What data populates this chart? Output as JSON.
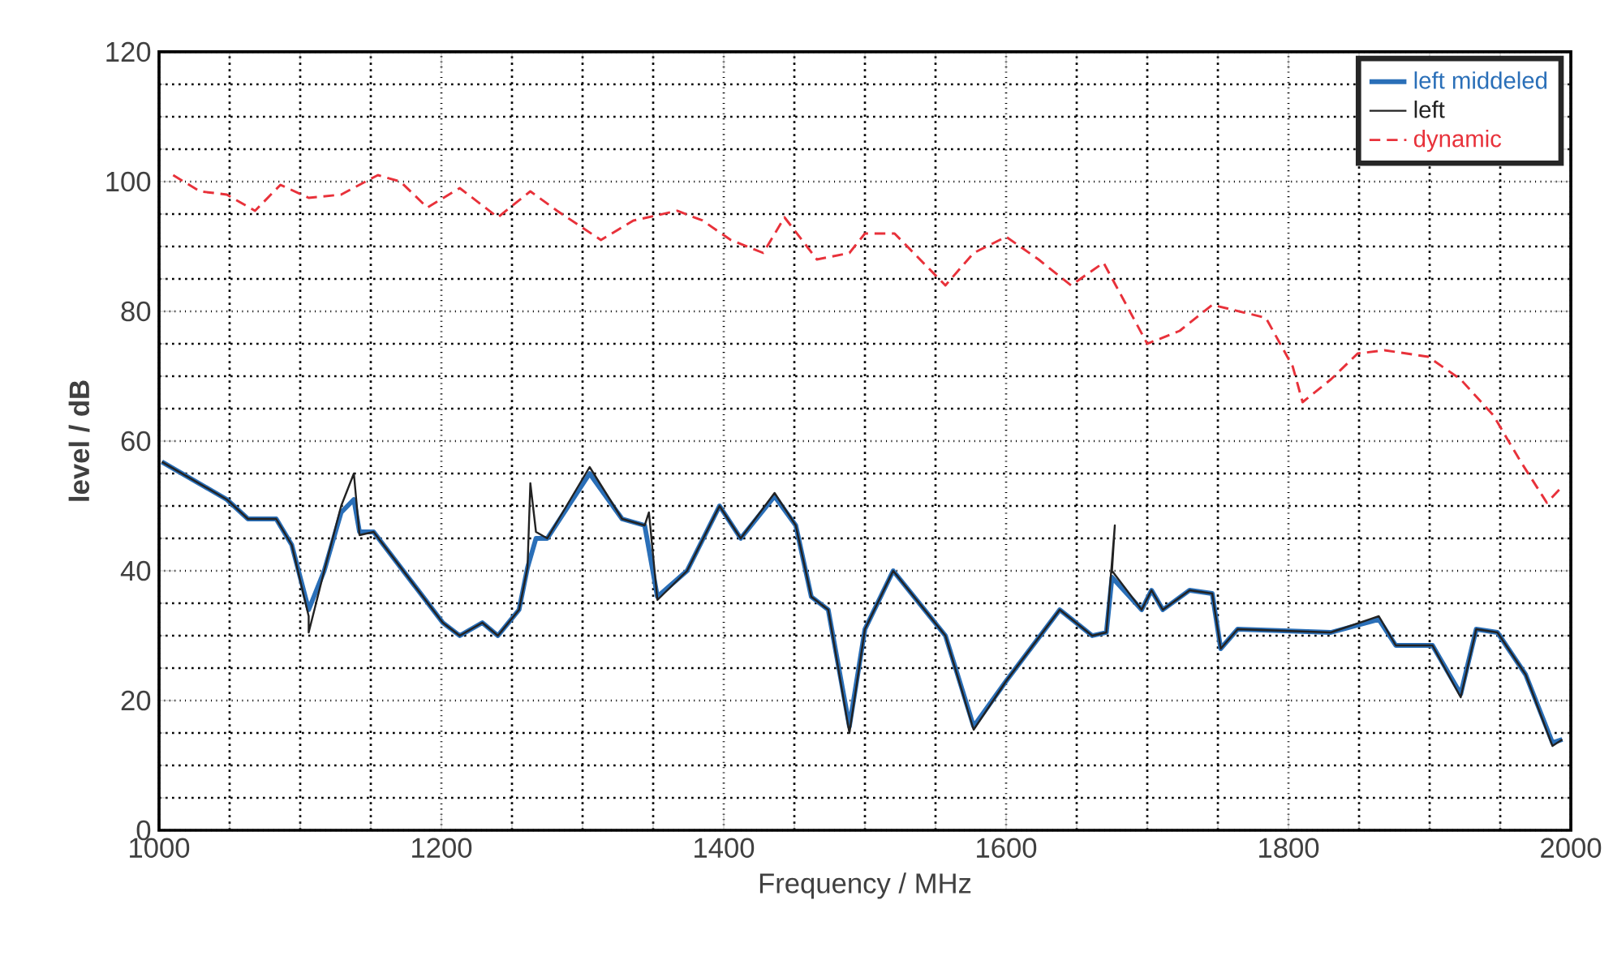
{
  "chart_data": {
    "type": "line",
    "xlabel": "Frequency / MHz",
    "ylabel": "level / dB",
    "xlim": [
      1000,
      2000
    ],
    "ylim": [
      0,
      120
    ],
    "xticks": [
      1000,
      1200,
      1400,
      1600,
      1800,
      2000
    ],
    "yticks": [
      0,
      20,
      40,
      60,
      80,
      100,
      120
    ],
    "grid": true,
    "legend": "top right",
    "marker": "none",
    "series": [
      {
        "name": "left middeled",
        "color": "#2a6fb8",
        "line_style": "solid",
        "x": [
          1002,
          1048,
          1063,
          1083,
          1094,
          1106,
          1117,
          1129,
          1138,
          1142,
          1152,
          1201,
          1213,
          1229,
          1240,
          1255,
          1261,
          1267,
          1275,
          1305,
          1328,
          1344,
          1353,
          1374,
          1397,
          1412,
          1436,
          1451,
          1462,
          1474,
          1489,
          1500,
          1520,
          1557,
          1577,
          1600,
          1638,
          1661,
          1671,
          1675,
          1696,
          1703,
          1711,
          1730,
          1746,
          1752,
          1764,
          1830,
          1864,
          1876,
          1902,
          1922,
          1933,
          1948,
          1968,
          1987,
          1994
        ],
        "values": [
          56.8,
          51,
          48,
          48,
          44,
          34,
          40,
          49,
          51,
          46,
          46,
          32,
          30,
          32,
          30,
          34,
          40.5,
          45,
          45,
          55,
          48,
          47,
          36,
          40,
          50,
          45,
          51.5,
          47,
          36,
          34,
          16,
          31,
          40,
          30,
          16,
          23,
          34,
          30,
          30.5,
          39,
          34,
          37,
          34,
          37,
          36.5,
          28,
          31,
          30.5,
          32.5,
          28.5,
          28.5,
          21,
          31,
          30.5,
          24,
          13.5,
          14
        ]
      },
      {
        "name": "left",
        "color": "#222222",
        "line_style": "solid",
        "x": [
          1002,
          1048,
          1063,
          1083,
          1094,
          1106,
          1106,
          1117,
          1129,
          1138,
          1142,
          1152,
          1201,
          1213,
          1229,
          1240,
          1255,
          1261,
          1263,
          1267,
          1275,
          1305,
          1328,
          1344,
          1347,
          1353,
          1374,
          1397,
          1412,
          1436,
          1451,
          1462,
          1474,
          1489,
          1500,
          1520,
          1557,
          1577,
          1600,
          1638,
          1661,
          1671,
          1677,
          1675,
          1696,
          1703,
          1711,
          1730,
          1746,
          1752,
          1764,
          1830,
          1864,
          1876,
          1902,
          1922,
          1933,
          1948,
          1968,
          1987,
          1994
        ],
        "values": [
          56.8,
          51,
          48,
          48,
          44,
          33,
          30.5,
          40,
          50,
          55,
          45.5,
          46,
          32,
          30,
          32,
          30,
          34,
          40.5,
          53.5,
          46,
          45,
          56,
          48,
          47,
          49,
          35.5,
          40,
          50,
          45,
          52,
          47,
          36,
          34,
          15,
          31,
          40,
          30,
          15.5,
          23,
          34,
          30,
          30.5,
          47,
          40,
          34,
          37,
          34,
          37,
          36.5,
          28,
          31,
          30.5,
          33,
          28.5,
          28.5,
          20.5,
          31,
          30.5,
          24,
          13,
          14
        ]
      },
      {
        "name": "dynamic",
        "color": "#e8313a",
        "line_style": "dashed",
        "x": [
          1010,
          1029,
          1048,
          1068,
          1086,
          1106,
          1129,
          1155,
          1171,
          1190,
          1213,
          1240,
          1263,
          1282,
          1313,
          1336,
          1367,
          1385,
          1405,
          1428,
          1443,
          1466,
          1489,
          1500,
          1521,
          1557,
          1577,
          1600,
          1623,
          1646,
          1669,
          1700,
          1723,
          1746,
          1784,
          1803,
          1810,
          1830,
          1849,
          1868,
          1899,
          1922,
          1945,
          1964,
          1983,
          1994
        ],
        "values": [
          101,
          98.5,
          98,
          95.5,
          99.5,
          97.5,
          98,
          101,
          100,
          96,
          99,
          94.5,
          98.5,
          95.5,
          91,
          94,
          95.5,
          94,
          91,
          89,
          94.5,
          88,
          89,
          92,
          92,
          84,
          89,
          91.5,
          88,
          84,
          87.5,
          75,
          77,
          81,
          79,
          71.5,
          66,
          69.5,
          73.5,
          74,
          73,
          69.5,
          64,
          57,
          50.5,
          53
        ]
      }
    ]
  }
}
